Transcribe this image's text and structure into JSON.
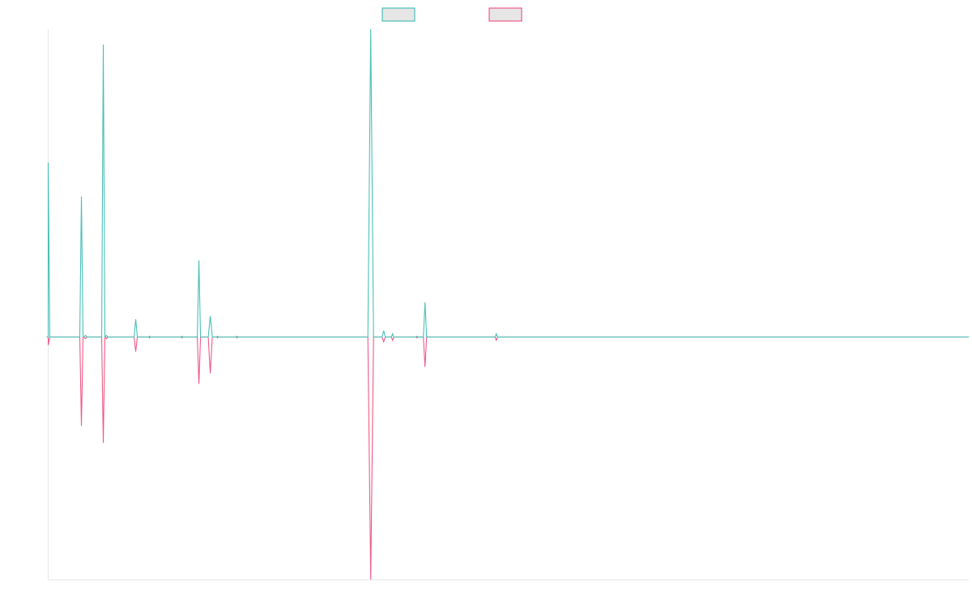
{
  "chart_data": {
    "type": "line",
    "series": [
      {
        "color": "#4bbfb8",
        "fill": "#e6e6e6",
        "direction": "up"
      },
      {
        "color": "#ef5a86",
        "fill": "#e6e6e6",
        "direction": "down"
      }
    ],
    "x_range": [
      0,
      1136
    ],
    "y_range": [
      -300,
      381
    ],
    "baseline_value": 0,
    "spikes": [
      {
        "x": 0,
        "a": 216,
        "b": 10,
        "w": 4
      },
      {
        "x": 41,
        "a": 174,
        "b": 110,
        "w": 4
      },
      {
        "x": 46,
        "a": 2,
        "b": 2,
        "w": 4
      },
      {
        "x": 68,
        "a": 362,
        "b": 131,
        "w": 4
      },
      {
        "x": 72,
        "a": 2,
        "b": 2,
        "w": 3
      },
      {
        "x": 108,
        "a": 22,
        "b": 18,
        "w": 4
      },
      {
        "x": 125,
        "a": 1,
        "b": 1,
        "w": 2
      },
      {
        "x": 165,
        "a": 1,
        "b": 1,
        "w": 2
      },
      {
        "x": 186,
        "a": 95,
        "b": 58,
        "w": 4
      },
      {
        "x": 200,
        "a": 26,
        "b": 45,
        "w": 5
      },
      {
        "x": 209,
        "a": 1,
        "b": 1,
        "w": 2
      },
      {
        "x": 233,
        "a": 1,
        "b": 1,
        "w": 2
      },
      {
        "x": 398,
        "a": 381,
        "b": 300,
        "w": 7
      },
      {
        "x": 414,
        "a": 8,
        "b": 6,
        "w": 4
      },
      {
        "x": 425,
        "a": 4,
        "b": 4,
        "w": 3
      },
      {
        "x": 455,
        "a": 1,
        "b": 1,
        "w": 2
      },
      {
        "x": 465,
        "a": 43,
        "b": 37,
        "w": 4
      },
      {
        "x": 553,
        "a": 4,
        "b": 4,
        "w": 3
      }
    ]
  }
}
